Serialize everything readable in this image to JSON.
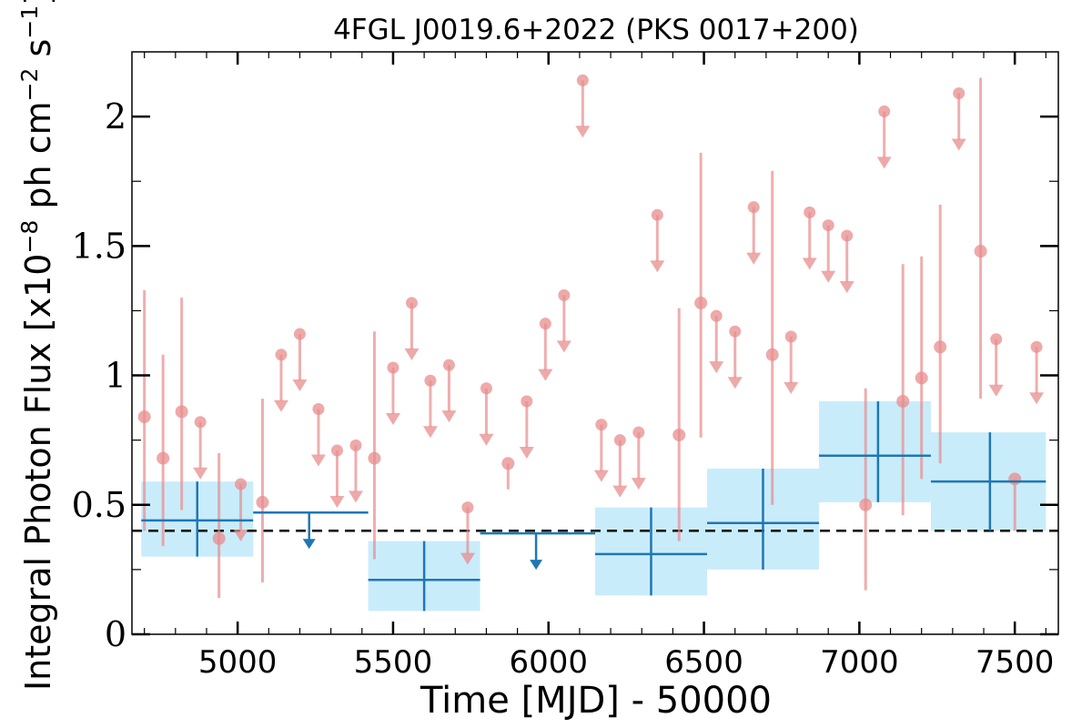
{
  "chart_data": {
    "type": "scatter",
    "title": "4FGL J0019.6+2022 (PKS 0017+200)",
    "xlabel": "Time [MJD] - 50000",
    "ylabel_parts": [
      "Integral Photon Flux [x10",
      "−8",
      " ph cm",
      "−2",
      " s",
      "−1",
      "]"
    ],
    "xlim": [
      4660,
      7640
    ],
    "ylim": [
      0,
      2.25
    ],
    "xticks": [
      5000,
      5500,
      6000,
      6500,
      7000,
      7500
    ],
    "xtick_labels": [
      "5000",
      "5500",
      "6000",
      "6500",
      "7000",
      "7500"
    ],
    "yticks": [
      0,
      0.5,
      1,
      1.5,
      2
    ],
    "ytick_labels": [
      "0",
      "0.5",
      "1",
      "1.5",
      "2"
    ],
    "reference_line": 0.4,
    "colors": {
      "fine_bins": "#e88c8c",
      "coarse_bins": "#1f77b4",
      "coarse_band": "#c9ecfb",
      "reference": "#000000"
    },
    "series": [
      {
        "points": [
          {
            "x": 4700,
            "y": 0.84,
            "yerr": [
              0.4,
              1.33
            ]
          },
          {
            "x": 4760,
            "y": 0.68,
            "yerr": [
              0.34,
              1.08
            ]
          },
          {
            "x": 4820,
            "y": 0.86,
            "yerr": [
              0.48,
              1.3
            ]
          },
          {
            "x": 4940,
            "y": 0.37,
            "yerr": [
              0.14,
              0.7
            ]
          },
          {
            "x": 5080,
            "y": 0.51,
            "yerr": [
              0.2,
              0.91
            ]
          },
          {
            "x": 5440,
            "y": 0.68,
            "yerr": [
              0.29,
              1.17
            ]
          },
          {
            "x": 5870,
            "y": 0.66,
            "yerr": [
              0.56,
              0.66
            ]
          },
          {
            "x": 6420,
            "y": 0.77,
            "yerr": [
              0.36,
              1.26
            ]
          },
          {
            "x": 6490,
            "y": 1.28,
            "yerr": [
              0.76,
              1.86
            ]
          },
          {
            "x": 6720,
            "y": 1.08,
            "yerr": [
              0.5,
              1.79
            ]
          },
          {
            "x": 7020,
            "y": 0.5,
            "yerr": [
              0.17,
              0.95
            ]
          },
          {
            "x": 7140,
            "y": 0.9,
            "yerr": [
              0.46,
              1.43
            ]
          },
          {
            "x": 7200,
            "y": 0.99,
            "yerr": [
              0.6,
              1.46
            ]
          },
          {
            "x": 7260,
            "y": 1.11,
            "yerr": [
              0.66,
              1.66
            ]
          },
          {
            "x": 7390,
            "y": 1.48,
            "yerr": [
              0.91,
              2.15
            ]
          },
          {
            "x": 7500,
            "y": 0.6,
            "yerr": [
              0.4,
              0.6
            ]
          }
        ],
        "upper_limits": [
          {
            "x": 4880,
            "y": 0.82
          },
          {
            "x": 5010,
            "y": 0.58
          },
          {
            "x": 5140,
            "y": 1.08
          },
          {
            "x": 5200,
            "y": 1.16
          },
          {
            "x": 5260,
            "y": 0.87
          },
          {
            "x": 5320,
            "y": 0.71
          },
          {
            "x": 5380,
            "y": 0.73
          },
          {
            "x": 5500,
            "y": 1.03
          },
          {
            "x": 5560,
            "y": 1.28
          },
          {
            "x": 5620,
            "y": 0.98
          },
          {
            "x": 5680,
            "y": 1.04
          },
          {
            "x": 5740,
            "y": 0.49
          },
          {
            "x": 5800,
            "y": 0.95
          },
          {
            "x": 5930,
            "y": 0.9
          },
          {
            "x": 5990,
            "y": 1.2
          },
          {
            "x": 6050,
            "y": 1.31
          },
          {
            "x": 6110,
            "y": 2.14
          },
          {
            "x": 6170,
            "y": 0.81
          },
          {
            "x": 6230,
            "y": 0.75
          },
          {
            "x": 6290,
            "y": 0.78
          },
          {
            "x": 6350,
            "y": 1.62
          },
          {
            "x": 6540,
            "y": 1.23
          },
          {
            "x": 6600,
            "y": 1.17
          },
          {
            "x": 6660,
            "y": 1.65
          },
          {
            "x": 6780,
            "y": 1.15
          },
          {
            "x": 6840,
            "y": 1.63
          },
          {
            "x": 6900,
            "y": 1.58
          },
          {
            "x": 6960,
            "y": 1.54
          },
          {
            "x": 7080,
            "y": 2.02
          },
          {
            "x": 7320,
            "y": 2.09
          },
          {
            "x": 7440,
            "y": 1.14
          },
          {
            "x": 7570,
            "y": 1.11
          }
        ]
      },
      {
        "points": [
          {
            "x": 4870,
            "x0": 4690,
            "x1": 5050,
            "y": 0.44,
            "yerr": [
              0.3,
              0.59
            ]
          },
          {
            "x": 5600,
            "x0": 5420,
            "x1": 5780,
            "y": 0.21,
            "yerr": [
              0.09,
              0.36
            ]
          },
          {
            "x": 6330,
            "x0": 6150,
            "x1": 6510,
            "y": 0.31,
            "yerr": [
              0.15,
              0.49
            ]
          },
          {
            "x": 6690,
            "x0": 6510,
            "x1": 6870,
            "y": 0.43,
            "yerr": [
              0.25,
              0.64
            ]
          },
          {
            "x": 7060,
            "x0": 6870,
            "x1": 7230,
            "y": 0.69,
            "yerr": [
              0.51,
              0.9
            ]
          },
          {
            "x": 7420,
            "x0": 7230,
            "x1": 7600,
            "y": 0.59,
            "yerr": [
              0.4,
              0.78
            ]
          }
        ],
        "upper_limits": [
          {
            "x": 5230,
            "x0": 5050,
            "x1": 5420,
            "y": 0.47
          },
          {
            "x": 5960,
            "x0": 5780,
            "x1": 6150,
            "y": 0.39
          }
        ]
      }
    ]
  }
}
